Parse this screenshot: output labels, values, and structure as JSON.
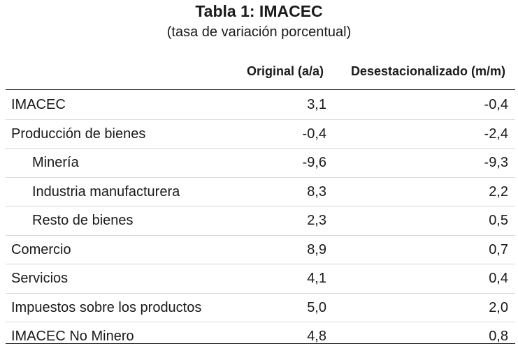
{
  "table": {
    "title": "Tabla 1:  IMACEC",
    "subtitle": "(tasa de variación porcentual)",
    "columns": [
      "Original (a/a)",
      "Desestacionalizado (m/m)"
    ],
    "rows": [
      {
        "label": "IMACEC",
        "original": "3,1",
        "desestacionalizado": "-0,4",
        "indent": false
      },
      {
        "label": "Producción de bienes",
        "original": "-0,4",
        "desestacionalizado": "-2,4",
        "indent": false
      },
      {
        "label": "Minería",
        "original": "-9,6",
        "desestacionalizado": "-9,3",
        "indent": true
      },
      {
        "label": "Industria manufacturera",
        "original": "8,3",
        "desestacionalizado": "2,2",
        "indent": true
      },
      {
        "label": "Resto de bienes",
        "original": "2,3",
        "desestacionalizado": "0,5",
        "indent": true
      },
      {
        "label": "Comercio",
        "original": "8,9",
        "desestacionalizado": "0,7",
        "indent": false
      },
      {
        "label": "Servicios",
        "original": "4,1",
        "desestacionalizado": "0,4",
        "indent": false
      },
      {
        "label": "Impuestos sobre los productos",
        "original": "5,0",
        "desestacionalizado": "2,0",
        "indent": false
      },
      {
        "label": "IMACEC No Minero",
        "original": "4,8",
        "desestacionalizado": "0,8",
        "indent": false
      }
    ]
  }
}
